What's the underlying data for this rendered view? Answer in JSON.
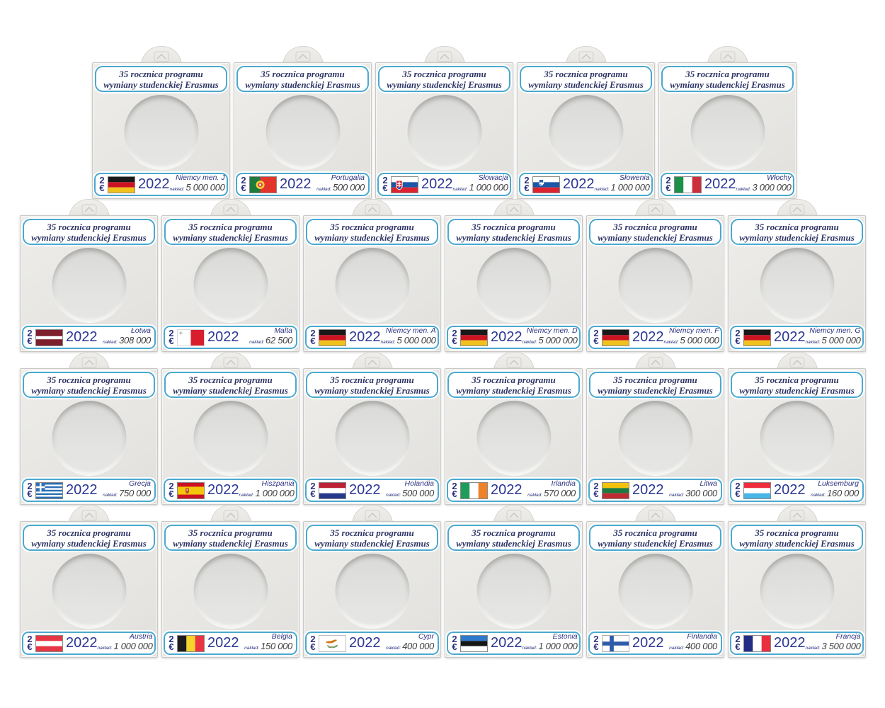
{
  "title": {
    "line1": "35 rocznica programu",
    "line2": "wymiany studenckiej Erasmus"
  },
  "label": {
    "denomination_top": "2",
    "denomination_currency": "€",
    "year": "2022",
    "mintage_caption": "nakład:"
  },
  "colors": {
    "label_border_cyan": "#4aa9cf",
    "navy_text": "#2b3380",
    "year_navy": "#2b3694",
    "mintage_gray": "#3f3f3f",
    "holder_gray": "#e7e6e3"
  },
  "rows": [
    {
      "holders": [
        {
          "country": "Niemcy men. J",
          "mintage": "5 000 000",
          "flag": "germany"
        },
        {
          "country": "Portugalia",
          "mintage": "500 000",
          "flag": "portugal"
        },
        {
          "country": "Słowacja",
          "mintage": "1 000 000",
          "flag": "slovakia"
        },
        {
          "country": "Słowenia",
          "mintage": "1 000 000",
          "flag": "slovenia"
        },
        {
          "country": "Włochy",
          "mintage": "3 000 000",
          "flag": "italy"
        }
      ]
    },
    {
      "holders": [
        {
          "country": "Łotwa",
          "mintage": "308 000",
          "flag": "latvia"
        },
        {
          "country": "Malta",
          "mintage": "62 500",
          "flag": "malta"
        },
        {
          "country": "Niemcy men. A",
          "mintage": "5 000 000",
          "flag": "germany"
        },
        {
          "country": "Niemcy men. D",
          "mintage": "5 000 000",
          "flag": "germany"
        },
        {
          "country": "Niemcy men. F",
          "mintage": "5 000 000",
          "flag": "germany"
        },
        {
          "country": "Niemcy men. G",
          "mintage": "5 000 000",
          "flag": "germany"
        }
      ]
    },
    {
      "holders": [
        {
          "country": "Grecja",
          "mintage": "750 000",
          "flag": "greece"
        },
        {
          "country": "Hiszpania",
          "mintage": "1 000 000",
          "flag": "spain"
        },
        {
          "country": "Holandia",
          "mintage": "500 000",
          "flag": "netherlands"
        },
        {
          "country": "Irlandia",
          "mintage": "570 000",
          "flag": "ireland"
        },
        {
          "country": "Litwa",
          "mintage": "300 000",
          "flag": "lithuania"
        },
        {
          "country": "Luksemburg",
          "mintage": "160 000",
          "flag": "luxembourg"
        }
      ]
    },
    {
      "holders": [
        {
          "country": "Austria",
          "mintage": "1 000 000",
          "flag": "austria"
        },
        {
          "country": "Belgia",
          "mintage": "150 000",
          "flag": "belgium"
        },
        {
          "country": "Cypr",
          "mintage": "400 000",
          "flag": "cyprus"
        },
        {
          "country": "Estonia",
          "mintage": "1 000 000",
          "flag": "estonia"
        },
        {
          "country": "Finlandia",
          "mintage": "400 000",
          "flag": "finland"
        },
        {
          "country": "Francja",
          "mintage": "3 500 000",
          "flag": "france"
        }
      ]
    }
  ]
}
